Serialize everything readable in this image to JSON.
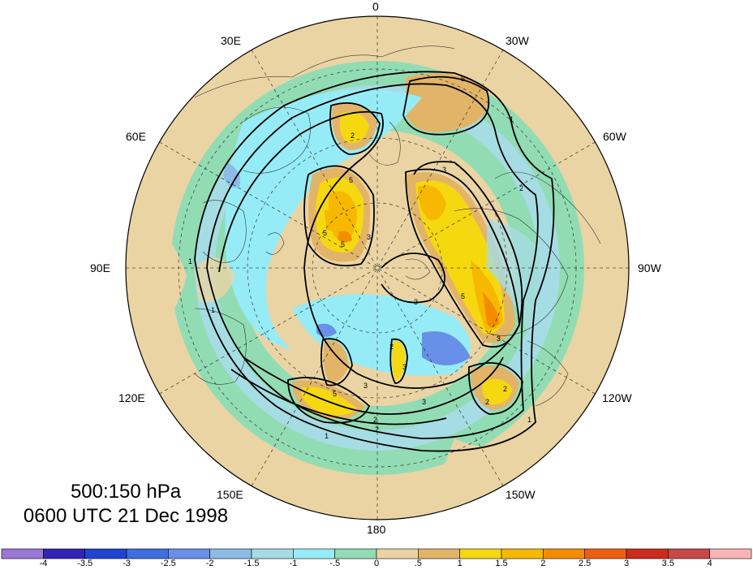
{
  "title": {
    "levels": "500:150 hPa",
    "time": "0600 UTC 21 Dec 1998"
  },
  "longitude_labels": [
    "0",
    "30W",
    "60W",
    "90W",
    "120W",
    "150W",
    "180",
    "150E",
    "120E",
    "90E",
    "60E",
    "30E"
  ],
  "contour_labels": [
    "2",
    "3",
    "5",
    "3",
    "2",
    "1",
    "3",
    "5",
    "3",
    "5",
    "2",
    "3",
    "5",
    "2",
    "3",
    "1",
    "5",
    "2",
    "1",
    "5",
    "2",
    "1",
    "1",
    "3",
    "2"
  ],
  "colorbar": {
    "labels": [
      "-4",
      "-3.5",
      "-3",
      "-2.5",
      "-2",
      "-1.5",
      "-1",
      "-.5",
      "0",
      ".5",
      "1",
      "1.5",
      "2",
      "2.5",
      "3",
      "3.5",
      "4"
    ],
    "colors": [
      "#9a78d8",
      "#3024b4",
      "#2044d0",
      "#3e6ee0",
      "#6890e8",
      "#8cbce6",
      "#a6dce4",
      "#96ecf6",
      "#92dcb4",
      "#ead4a4",
      "#e2b468",
      "#f6d810",
      "#f6b800",
      "#f48c00",
      "#ee5e10",
      "#cc2c1c",
      "#c84848",
      "#f8b4b4"
    ]
  }
}
